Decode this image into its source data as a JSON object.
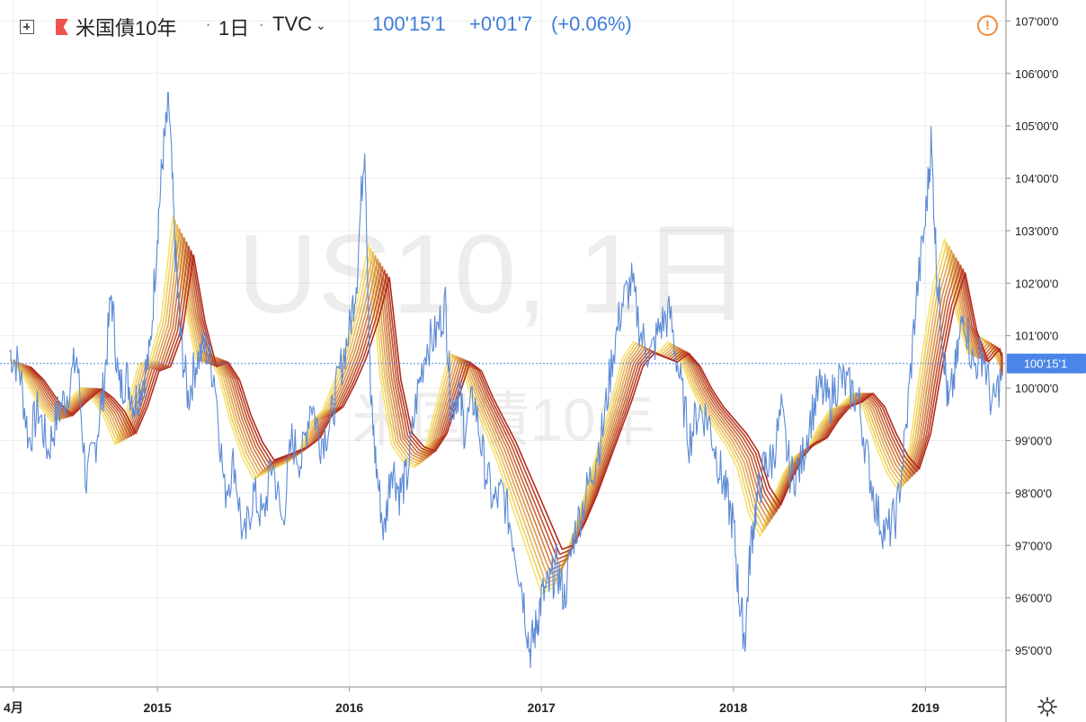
{
  "header": {
    "symbol_name": "米国債10年",
    "sep1": "·",
    "interval": "1日",
    "sep2": "·",
    "exchange": "TVC",
    "last_price": "100'15'1",
    "change": "+0'01'7",
    "change_pct": "(+0.06%)"
  },
  "watermark": {
    "main": "US10, 1日",
    "sub": "米国債10年"
  },
  "colors": {
    "price_line": "#5b8ad6",
    "last_price_tag": "#4a86e8",
    "warn": "#f08a3a",
    "ma_dark": "#b22a1e",
    "ma_light": "#f7e36b"
  },
  "icons": [
    "plus-icon",
    "flag-icon",
    "chevron-down-icon",
    "warning-icon",
    "gear-icon"
  ],
  "chart_data": {
    "type": "line",
    "y_axis_side": "right",
    "ylim": [
      94.3,
      107.4
    ],
    "xlim": [
      2014.18,
      2019.42
    ],
    "grid": true,
    "y_ticks": [
      {
        "value": 107,
        "label": "107'00'0"
      },
      {
        "value": 106,
        "label": "106'00'0"
      },
      {
        "value": 105,
        "label": "105'00'0"
      },
      {
        "value": 104,
        "label": "104'00'0"
      },
      {
        "value": 103,
        "label": "103'00'0"
      },
      {
        "value": 102,
        "label": "102'00'0"
      },
      {
        "value": 101,
        "label": "101'00'0"
      },
      {
        "value": 100,
        "label": "100'00'0"
      },
      {
        "value": 99,
        "label": "99'00'0"
      },
      {
        "value": 98,
        "label": "98'00'0"
      },
      {
        "value": 97,
        "label": "97'00'0"
      },
      {
        "value": 96,
        "label": "96'00'0"
      },
      {
        "value": 95,
        "label": "95'00'0"
      }
    ],
    "x_ticks": [
      {
        "value": 2014.25,
        "label": "4月"
      },
      {
        "value": 2015.0,
        "label": "2015"
      },
      {
        "value": 2016.0,
        "label": "2016"
      },
      {
        "value": 2017.0,
        "label": "2017"
      },
      {
        "value": 2018.0,
        "label": "2018"
      },
      {
        "value": 2019.0,
        "label": "2019"
      }
    ],
    "last_value": 100.47,
    "last_label": "100'15'1",
    "price_series": {
      "x": [
        2014.23,
        2014.28,
        2014.33,
        2014.38,
        2014.43,
        2014.48,
        2014.53,
        2014.58,
        2014.63,
        2014.68,
        2014.72,
        2014.76,
        2014.8,
        2014.84,
        2014.88,
        2014.92,
        2014.96,
        2015.0,
        2015.03,
        2015.06,
        2015.09,
        2015.12,
        2015.16,
        2015.2,
        2015.25,
        2015.3,
        2015.35,
        2015.4,
        2015.45,
        2015.5,
        2015.55,
        2015.6,
        2015.65,
        2015.7,
        2015.75,
        2015.8,
        2015.85,
        2015.9,
        2015.95,
        2016.0,
        2016.04,
        2016.08,
        2016.11,
        2016.14,
        2016.18,
        2016.22,
        2016.26,
        2016.3,
        2016.35,
        2016.4,
        2016.45,
        2016.5,
        2016.53,
        2016.57,
        2016.6,
        2016.65,
        2016.7,
        2016.75,
        2016.8,
        2016.85,
        2016.9,
        2016.94,
        2016.97,
        2017.0,
        2017.04,
        2017.08,
        2017.12,
        2017.17,
        2017.22,
        2017.27,
        2017.32,
        2017.37,
        2017.42,
        2017.47,
        2017.52,
        2017.57,
        2017.62,
        2017.67,
        2017.72,
        2017.77,
        2017.82,
        2017.87,
        2017.92,
        2017.96,
        2018.0,
        2018.03,
        2018.06,
        2018.09,
        2018.12,
        2018.16,
        2018.2,
        2018.25,
        2018.3,
        2018.35,
        2018.4,
        2018.45,
        2018.5,
        2018.55,
        2018.6,
        2018.65,
        2018.7,
        2018.75,
        2018.8,
        2018.85,
        2018.9,
        2018.95,
        2019.0,
        2019.03,
        2019.06,
        2019.09,
        2019.12,
        2019.16,
        2019.2,
        2019.25,
        2019.3,
        2019.35,
        2019.4
      ],
      "y": [
        100.7,
        100.4,
        99.0,
        99.6,
        98.8,
        99.5,
        99.9,
        100.6,
        98.2,
        99.0,
        100.0,
        101.8,
        100.0,
        100.2,
        99.7,
        100.1,
        100.6,
        103.0,
        104.5,
        105.4,
        102.8,
        101.0,
        99.8,
        100.5,
        100.8,
        100.2,
        98.0,
        98.6,
        97.0,
        98.0,
        97.5,
        98.6,
        97.4,
        99.0,
        98.6,
        99.8,
        99.0,
        99.3,
        100.3,
        101.1,
        102.2,
        104.8,
        99.8,
        98.5,
        97.2,
        98.6,
        98.0,
        98.3,
        99.8,
        100.8,
        101.0,
        101.6,
        99.6,
        100.0,
        99.2,
        99.8,
        98.6,
        97.8,
        98.0,
        97.2,
        96.2,
        95.0,
        95.4,
        96.0,
        96.2,
        96.6,
        96.0,
        97.2,
        97.8,
        98.5,
        99.2,
        100.6,
        101.6,
        102.0,
        101.0,
        100.6,
        101.2,
        101.4,
        100.2,
        99.0,
        99.6,
        99.4,
        98.6,
        98.0,
        97.4,
        96.0,
        95.2,
        97.0,
        97.8,
        98.5,
        98.6,
        99.5,
        98.3,
        98.5,
        99.4,
        100.0,
        99.7,
        100.2,
        100.0,
        99.8,
        98.6,
        97.6,
        97.2,
        97.6,
        99.2,
        101.6,
        103.2,
        104.7,
        102.2,
        101.0,
        99.6,
        100.4,
        101.5,
        100.4,
        100.7,
        99.6,
        100.3
      ]
    },
    "ma_series": {
      "x": [
        2014.23,
        2014.3,
        2014.38,
        2014.45,
        2014.52,
        2014.6,
        2014.66,
        2014.72,
        2014.78,
        2014.84,
        2014.9,
        2014.96,
        2015.02,
        2015.08,
        2015.14,
        2015.2,
        2015.26,
        2015.32,
        2015.38,
        2015.44,
        2015.5,
        2015.56,
        2015.62,
        2015.68,
        2015.74,
        2015.8,
        2015.86,
        2015.92,
        2015.98,
        2016.04,
        2016.1,
        2016.16,
        2016.22,
        2016.28,
        2016.34,
        2016.4,
        2016.46,
        2016.52,
        2016.58,
        2016.64,
        2016.7,
        2016.76,
        2016.82,
        2016.88,
        2016.94,
        2017.0,
        2017.06,
        2017.12,
        2017.18,
        2017.24,
        2017.3,
        2017.36,
        2017.42,
        2017.48,
        2017.54,
        2017.6,
        2017.66,
        2017.72,
        2017.78,
        2017.84,
        2017.9,
        2017.96,
        2018.02,
        2018.08,
        2018.14,
        2018.2,
        2018.26,
        2018.32,
        2018.38,
        2018.44,
        2018.5,
        2018.56,
        2018.62,
        2018.68,
        2018.74,
        2018.8,
        2018.86,
        2018.92,
        2018.98,
        2019.04,
        2019.1,
        2019.16,
        2019.22,
        2019.28,
        2019.34,
        2019.4
      ],
      "y": [
        100.5,
        100.2,
        99.7,
        99.4,
        99.7,
        100.0,
        99.8,
        99.5,
        99.0,
        99.6,
        100.4,
        100.5,
        101.2,
        103.0,
        101.5,
        100.5,
        100.6,
        100.2,
        99.4,
        98.8,
        98.4,
        98.5,
        98.6,
        98.7,
        98.9,
        99.4,
        99.6,
        100.1,
        100.7,
        101.5,
        102.5,
        100.2,
        99.0,
        98.7,
        98.6,
        99.0,
        99.8,
        100.6,
        100.4,
        99.8,
        99.3,
        98.8,
        98.2,
        97.6,
        97.0,
        96.4,
        96.5,
        97.0,
        97.6,
        98.3,
        99.0,
        99.7,
        100.5,
        100.8,
        100.7,
        100.6,
        100.8,
        100.5,
        100.0,
        99.6,
        99.3,
        99.0,
        98.6,
        97.8,
        97.4,
        98.0,
        98.5,
        98.8,
        98.9,
        99.3,
        99.6,
        99.7,
        99.9,
        99.6,
        99.0,
        98.5,
        98.2,
        99.0,
        100.5,
        101.8,
        102.6,
        101.3,
        100.6,
        100.9,
        100.7,
        100.3
      ]
    }
  }
}
